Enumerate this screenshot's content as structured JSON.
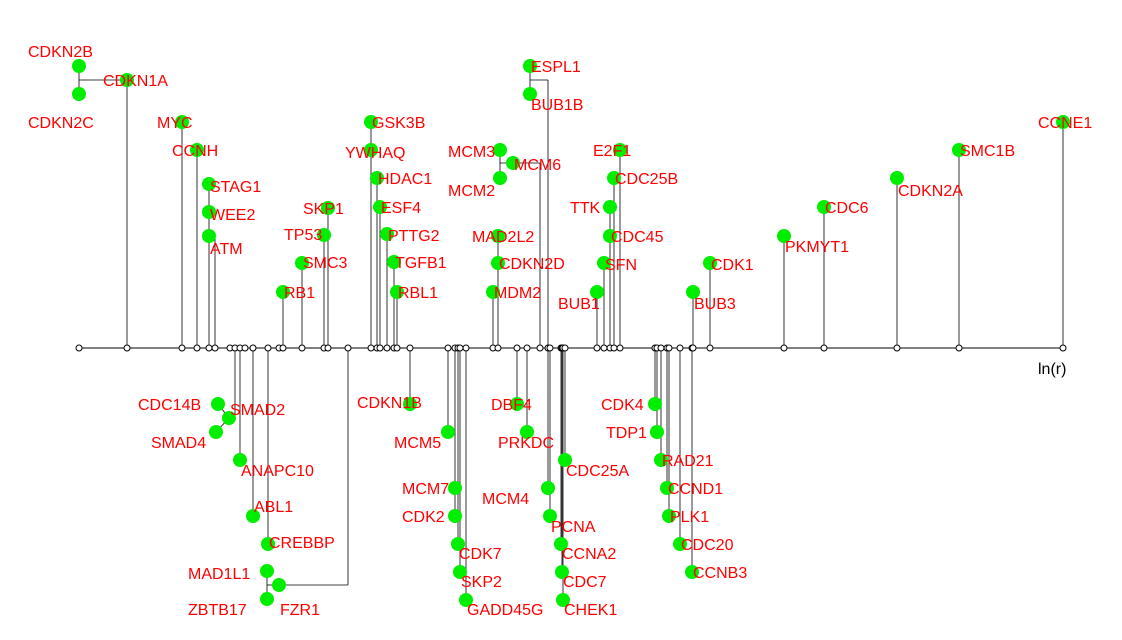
{
  "axis_label": "ln(r)",
  "node_color": "#00ee00",
  "label_color": "#ff0000",
  "line_color": "#000000",
  "genes_above": [
    "CDKN2B",
    "CDKN1A",
    "CDKN2C",
    "MYC",
    "CCNH",
    "STAG1",
    "WEE2",
    "ATM",
    "SKP1",
    "TP53",
    "SMC3",
    "RB1",
    "GSK3B",
    "YWHAQ",
    "HDAC1",
    "ESF4",
    "PTTG2",
    "TGFB1",
    "RBL1",
    "MCM3",
    "MCM6",
    "MCM2",
    "ESPL1",
    "BUB1B",
    "MAD2L2",
    "CDKN2D",
    "MDM2",
    "E2F1",
    "CDC25B",
    "TTK",
    "CDC45",
    "SFN",
    "BUB1",
    "CDK1",
    "BUB3",
    "PKMYT1",
    "CDC6",
    "CDKN2A",
    "SMC1B",
    "CCNE1"
  ],
  "genes_below": [
    "CDC14B",
    "SMAD2",
    "SMAD4",
    "ANAPC10",
    "ABL1",
    "CREBBP",
    "MAD1L1",
    "ZBTB17",
    "FZR1",
    "CDKN1B",
    "MCM5",
    "MCM7",
    "CDK2",
    "CDK7",
    "SKP2",
    "GADD45G",
    "DBF4",
    "PRKDC",
    "CDC25A",
    "MCM4",
    "PCNA",
    "CCNA2",
    "CDC7",
    "CHEK1",
    "CDK4",
    "TDP1",
    "RAD21",
    "CCND1",
    "PLK1",
    "CDC20",
    "CCNB3"
  ]
}
